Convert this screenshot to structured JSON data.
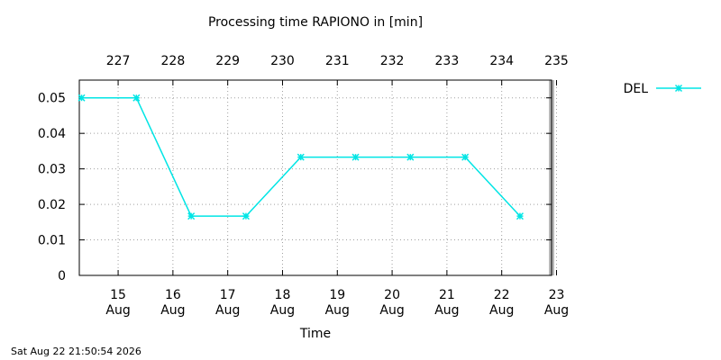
{
  "chart_data": {
    "type": "line",
    "title": "Processing time RAPIONO in [min]",
    "xlabel": "Time",
    "ylabel": "",
    "ylim": [
      0,
      0.055
    ],
    "xlim": [
      "2026-08-14 07:00",
      "2026-08-22 21:50"
    ],
    "y_ticks": [
      "0",
      "0.01",
      "0.02",
      "0.03",
      "0.04",
      "0.05"
    ],
    "x_ticks": [
      {
        "day": "15",
        "month": "Aug",
        "doy": "227",
        "date": "2026-08-15"
      },
      {
        "day": "16",
        "month": "Aug",
        "doy": "228",
        "date": "2026-08-16"
      },
      {
        "day": "17",
        "month": "Aug",
        "doy": "229",
        "date": "2026-08-17"
      },
      {
        "day": "18",
        "month": "Aug",
        "doy": "230",
        "date": "2026-08-18"
      },
      {
        "day": "19",
        "month": "Aug",
        "doy": "231",
        "date": "2026-08-19"
      },
      {
        "day": "20",
        "month": "Aug",
        "doy": "232",
        "date": "2026-08-20"
      },
      {
        "day": "21",
        "month": "Aug",
        "doy": "233",
        "date": "2026-08-21"
      },
      {
        "day": "22",
        "month": "Aug",
        "doy": "234",
        "date": "2026-08-22"
      },
      {
        "day": "23",
        "month": "Aug",
        "doy": "235",
        "date": "2026-08-23"
      }
    ],
    "grid": true,
    "legend_position": "top-right",
    "series": [
      {
        "name": "DEL",
        "color": "#00e5e5",
        "marker": "x",
        "x": [
          "2026-08-14 08:00",
          "2026-08-15 08:00",
          "2026-08-16 08:00",
          "2026-08-17 08:00",
          "2026-08-18 08:00",
          "2026-08-19 08:00",
          "2026-08-20 08:00",
          "2026-08-21 08:00",
          "2026-08-22 08:00"
        ],
        "values": [
          0.05,
          0.05,
          0.0167,
          0.0167,
          0.0333,
          0.0333,
          0.0333,
          0.0333,
          0.0167
        ]
      }
    ],
    "now_marker": {
      "date": "2026-08-22 21:50",
      "color": "#b8b8b8"
    }
  },
  "timestamp": "Sat Aug 22 21:50:54 2026"
}
